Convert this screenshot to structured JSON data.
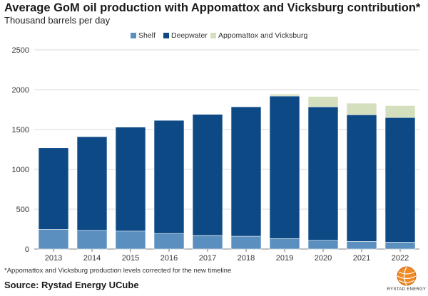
{
  "title": "Average GoM oil production with Appomattox and Vicksburg contribution*",
  "subtitle": "Thousand barrels per day",
  "footnote": "*Appomattox and Vicksburg production levels corrected for the new timeline",
  "source": "Source: Rystad Energy UCube",
  "logo_text": "RYSTAD ENERGY",
  "colors": {
    "shelf": "#5a8fbf",
    "deepwater": "#0d4a85",
    "appomattox": "#d4dfbd",
    "grid": "#d9d9d9",
    "axis": "#7f7f7f"
  },
  "chart_data": {
    "type": "bar",
    "stacked": true,
    "categories": [
      "2013",
      "2014",
      "2015",
      "2016",
      "2017",
      "2018",
      "2019",
      "2020",
      "2021",
      "2022"
    ],
    "series": [
      {
        "name": "Shelf",
        "values": [
          245,
          235,
          225,
          195,
          170,
          160,
          130,
          110,
          95,
          85
        ]
      },
      {
        "name": "Deepwater",
        "values": [
          1025,
          1175,
          1305,
          1420,
          1520,
          1625,
          1790,
          1675,
          1590,
          1565
        ]
      },
      {
        "name": "Appomattox and Vicksburg",
        "values": [
          0,
          0,
          0,
          0,
          0,
          0,
          25,
          130,
          145,
          150
        ]
      }
    ],
    "ylim": [
      0,
      2500
    ],
    "yticks": [
      "0",
      "500",
      "1000",
      "1500",
      "2000",
      "2500"
    ],
    "grid": true,
    "legend_position": "top-center"
  }
}
